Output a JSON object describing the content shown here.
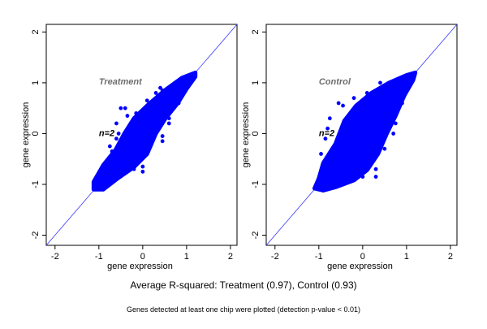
{
  "chart_data": [
    {
      "type": "scatter",
      "panel_label": "Treatment",
      "annotation": "n=2",
      "xlabel": "gene expression",
      "ylabel": "gene expression",
      "xlim": [
        -2.2,
        2.15
      ],
      "ylim": [
        -2.2,
        2.15
      ],
      "xticks": [
        "-2",
        "-1",
        "0",
        "1",
        "2"
      ],
      "yticks": [
        "-2",
        "-1",
        "0",
        "1",
        "2"
      ],
      "reference_line": {
        "slope": 1,
        "intercept": 0
      },
      "grid": false,
      "point_color": "#0000ff",
      "line_color": "#3a3aff",
      "label_color": "#6e6e6e",
      "dense_region": [
        [
          -1.12,
          -1.1
        ],
        [
          -1.12,
          -0.95
        ],
        [
          -0.9,
          -0.62
        ],
        [
          -0.62,
          -0.32
        ],
        [
          -0.42,
          0.0
        ],
        [
          -0.2,
          0.3
        ],
        [
          0.1,
          0.55
        ],
        [
          0.5,
          0.85
        ],
        [
          0.9,
          1.1
        ],
        [
          1.2,
          1.2
        ],
        [
          1.2,
          1.12
        ],
        [
          1.0,
          0.88
        ],
        [
          0.8,
          0.6
        ],
        [
          0.52,
          0.3
        ],
        [
          0.3,
          0.0
        ],
        [
          0.1,
          -0.4
        ],
        [
          -0.2,
          -0.66
        ],
        [
          -0.6,
          -0.9
        ],
        [
          -0.9,
          -1.1
        ]
      ],
      "points": [
        [
          -0.5,
          0.5
        ],
        [
          -0.4,
          0.5
        ],
        [
          -0.35,
          0.35
        ],
        [
          -0.6,
          0.2
        ],
        [
          -0.55,
          0.0
        ],
        [
          -0.75,
          -0.25
        ],
        [
          -0.6,
          -0.1
        ],
        [
          -0.05,
          0.25
        ],
        [
          0.1,
          0.65
        ],
        [
          0.15,
          0.55
        ],
        [
          0.4,
          0.9
        ],
        [
          0.45,
          0.85
        ],
        [
          0.5,
          0.82
        ],
        [
          0.82,
          0.6
        ],
        [
          0.6,
          0.3
        ],
        [
          0.6,
          0.2
        ],
        [
          0.45,
          -0.05
        ],
        [
          0.45,
          -0.15
        ],
        [
          0.0,
          -0.65
        ],
        [
          0.0,
          -0.75
        ],
        [
          -0.2,
          -0.7
        ],
        [
          -0.5,
          -0.8
        ],
        [
          -0.3,
          -0.6
        ],
        [
          -0.7,
          -0.35
        ],
        [
          -0.15,
          0.4
        ],
        [
          0.3,
          0.8
        ],
        [
          0.7,
          0.95
        ],
        [
          0.2,
          -0.2
        ],
        [
          -0.45,
          -0.55
        ],
        [
          0.55,
          0.55
        ]
      ]
    },
    {
      "type": "scatter",
      "panel_label": "Control",
      "annotation": "n=2",
      "xlabel": "gene expression",
      "ylabel": "gene expression",
      "xlim": [
        -2.2,
        2.15
      ],
      "ylim": [
        -2.2,
        2.15
      ],
      "xticks": [
        "-2",
        "-1",
        "0",
        "1",
        "2"
      ],
      "yticks": [
        "-2",
        "-1",
        "0",
        "1",
        "2"
      ],
      "reference_line": {
        "slope": 1,
        "intercept": 0
      },
      "grid": false,
      "point_color": "#0000ff",
      "line_color": "#3a3aff",
      "label_color": "#6e6e6e",
      "dense_region": [
        [
          -1.1,
          -1.08
        ],
        [
          -1.0,
          -0.88
        ],
        [
          -0.9,
          -0.58
        ],
        [
          -0.62,
          -0.2
        ],
        [
          -0.42,
          0.25
        ],
        [
          -0.15,
          0.55
        ],
        [
          0.2,
          0.8
        ],
        [
          0.6,
          1.0
        ],
        [
          1.0,
          1.15
        ],
        [
          1.2,
          1.2
        ],
        [
          1.15,
          1.05
        ],
        [
          0.95,
          0.75
        ],
        [
          0.75,
          0.35
        ],
        [
          0.55,
          0.0
        ],
        [
          0.35,
          -0.4
        ],
        [
          0.1,
          -0.72
        ],
        [
          -0.2,
          -0.92
        ],
        [
          -0.6,
          -1.05
        ],
        [
          -0.9,
          -1.12
        ]
      ],
      "points": [
        [
          -0.55,
          0.6
        ],
        [
          -0.45,
          0.55
        ],
        [
          -0.75,
          0.3
        ],
        [
          -0.8,
          0.1
        ],
        [
          -0.85,
          -0.1
        ],
        [
          -0.2,
          0.7
        ],
        [
          0.1,
          0.8
        ],
        [
          0.4,
          1.0
        ],
        [
          0.8,
          1.05
        ],
        [
          0.9,
          0.6
        ],
        [
          0.75,
          0.2
        ],
        [
          0.7,
          0.0
        ],
        [
          0.5,
          -0.3
        ],
        [
          0.3,
          -0.7
        ],
        [
          0.3,
          -0.85
        ],
        [
          0.0,
          -0.85
        ],
        [
          -0.35,
          -0.95
        ],
        [
          -0.7,
          -0.7
        ],
        [
          -0.95,
          -0.4
        ],
        [
          0.6,
          0.7
        ],
        [
          -0.3,
          0.3
        ],
        [
          0.2,
          -0.3
        ]
      ]
    }
  ],
  "caption": "Average R-squared: Treatment (0.97), Control (0.93)",
  "footnote": "Genes detected at least one chip were plotted (detection p-value < 0.01)"
}
